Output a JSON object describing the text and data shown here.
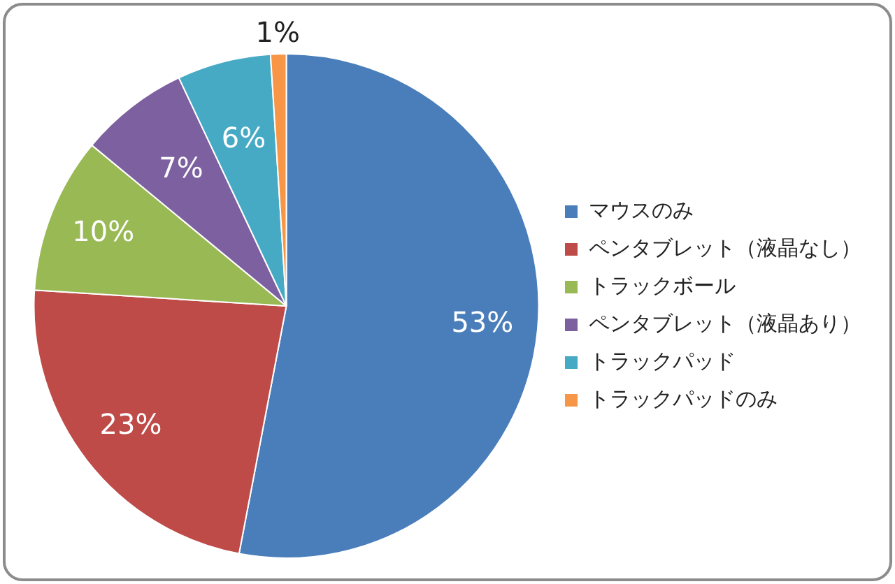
{
  "chart_data": {
    "type": "pie",
    "categories": [
      "マウスのみ",
      "ペンタブレット（液晶なし）",
      "トラックボール",
      "ペンタブレット（液晶あり）",
      "トラックパッド",
      "トラックパッドのみ"
    ],
    "values": [
      53,
      23,
      10,
      7,
      6,
      1
    ],
    "value_labels": [
      "53%",
      "23%",
      "10%",
      "7%",
      "6%",
      "1%"
    ],
    "colors": [
      "#4a7ebb",
      "#be4b48",
      "#98b954",
      "#7d60a0",
      "#46aac5",
      "#f79646"
    ],
    "legend": "right"
  }
}
